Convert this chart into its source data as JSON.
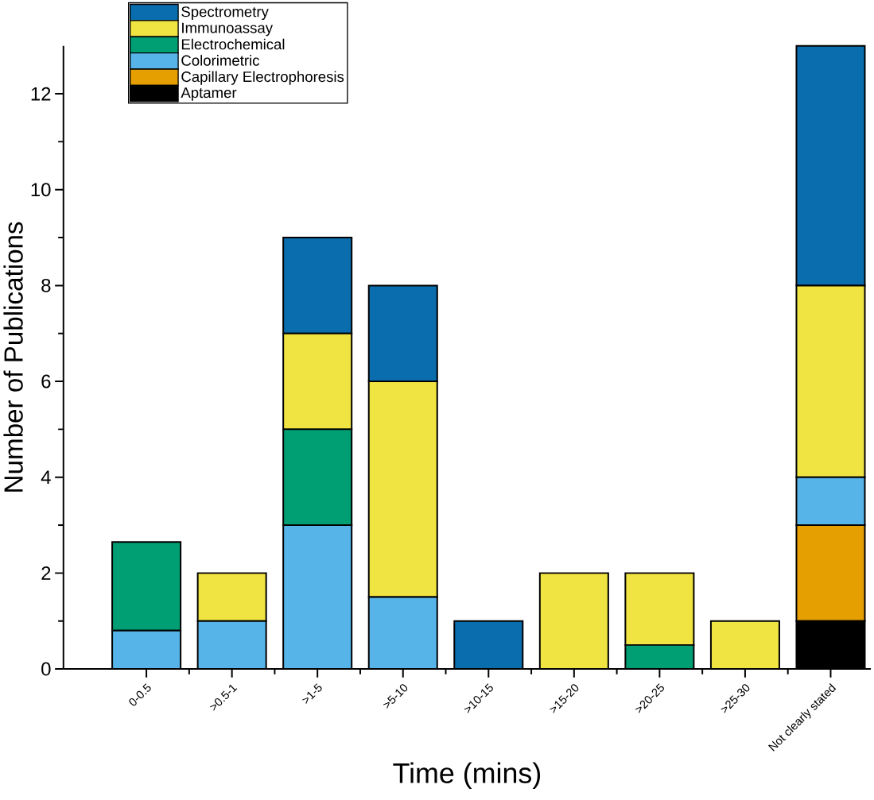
{
  "chart_data": {
    "type": "bar",
    "stacked": true,
    "xlabel": "Time (mins)",
    "ylabel": "Number of Publications",
    "categories": [
      "0-0.5",
      ">0.5-1",
      ">1-5",
      ">5-10",
      ">10-15",
      ">15-20",
      ">20-25",
      ">25-30",
      "Not clearly stated"
    ],
    "series": [
      {
        "name": "Aptamer",
        "color": "#000000",
        "values": [
          0,
          0,
          0,
          0,
          0,
          0,
          0,
          0,
          1
        ]
      },
      {
        "name": "Capillary Electrophoresis",
        "color": "#e69f00",
        "values": [
          0,
          0,
          0,
          0,
          0,
          0,
          0,
          0,
          2
        ]
      },
      {
        "name": "Colorimetric",
        "color": "#56b4e9",
        "values": [
          0.8,
          1,
          3,
          1.5,
          0,
          0,
          0,
          0,
          1
        ]
      },
      {
        "name": "Electrochemical",
        "color": "#009e73",
        "values": [
          1.85,
          0,
          2,
          0,
          0,
          0,
          0.5,
          0,
          0
        ]
      },
      {
        "name": "Immunoassay",
        "color": "#f0e442",
        "values": [
          0,
          1,
          2,
          4.5,
          0,
          2,
          1.5,
          1,
          4
        ]
      },
      {
        "name": "Spectrometry",
        "color": "#0a6eae",
        "values": [
          0,
          0,
          2,
          2,
          1,
          0,
          0,
          0,
          5
        ]
      }
    ],
    "ylim": [
      0,
      13
    ],
    "yticks": [
      0,
      2,
      4,
      6,
      8,
      10,
      12
    ],
    "legend": "top left",
    "grid": false
  }
}
